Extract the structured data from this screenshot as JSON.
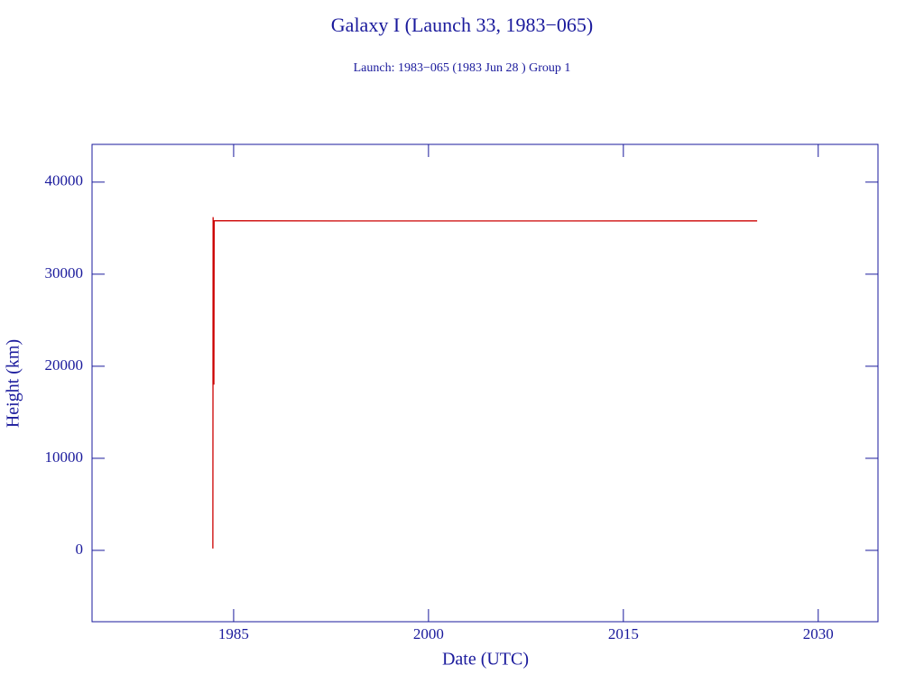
{
  "chart_data": {
    "type": "line",
    "title": "Galaxy I (Launch 33, 1983−065)",
    "subtitle": "Launch: 1983−065  (1983 Jun 28 )  Group 1",
    "x_label": "Date (UTC)",
    "y_label": "Height (km)",
    "x": [
      1983.4,
      1983.42,
      1983.45,
      1983.48,
      1983.5,
      1994,
      2025.3
    ],
    "values": [
      200,
      36200,
      28000,
      18000,
      35800,
      35780,
      35786
    ],
    "color": "#cc0000",
    "xlim": [
      1974.1,
      2034.6
    ],
    "xticks": [
      1985,
      2000,
      2015,
      2030
    ],
    "ylim": [
      -7750,
      44100
    ],
    "yticks": [
      0,
      10000,
      20000,
      30000,
      40000
    ]
  }
}
